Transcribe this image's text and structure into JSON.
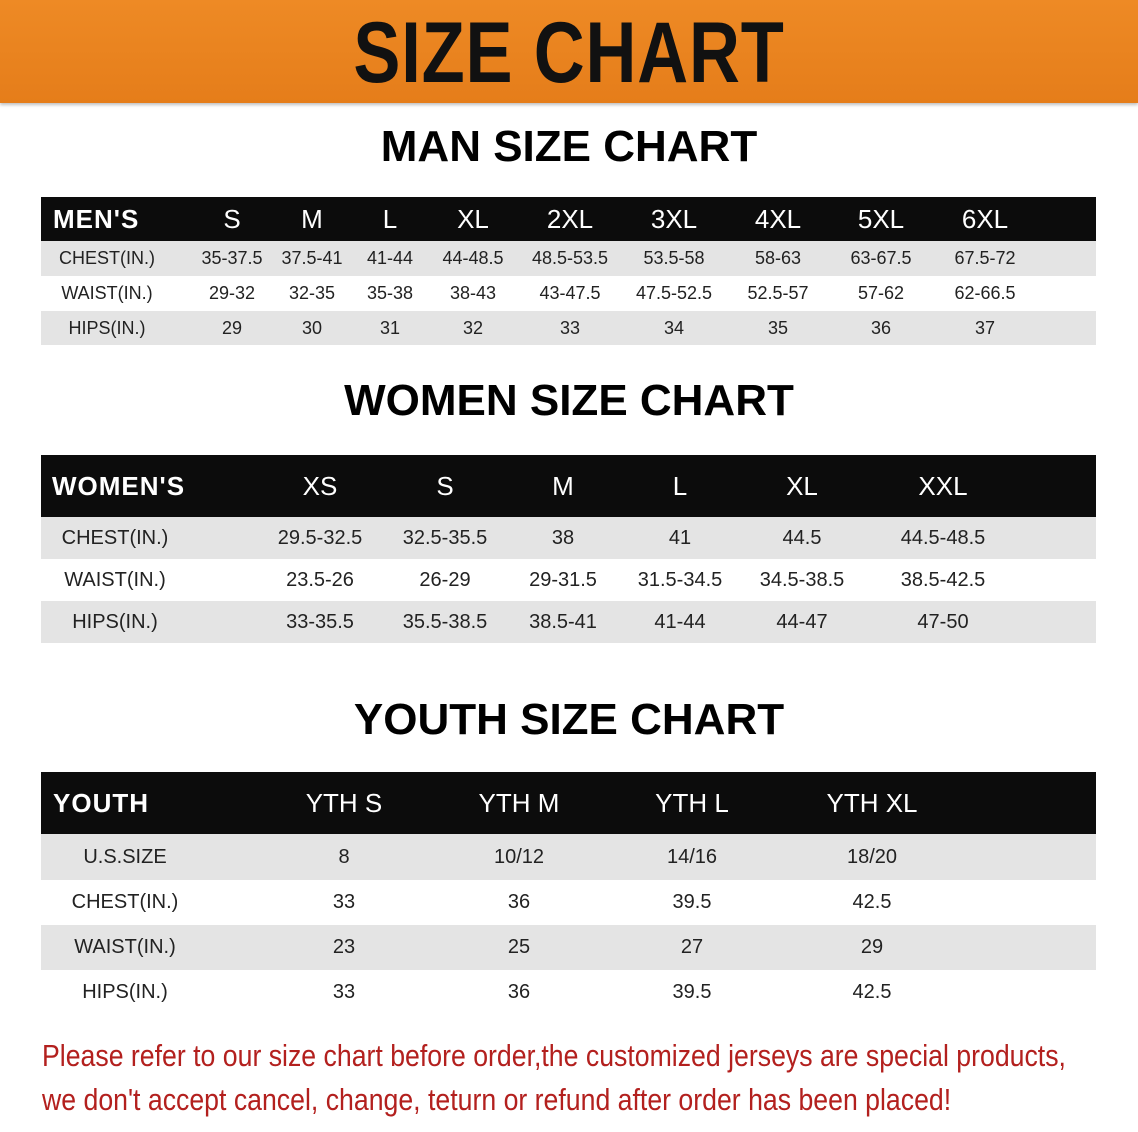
{
  "banner": {
    "title": "SIZE CHART",
    "color": "#e98420"
  },
  "men": {
    "title": "MAN SIZE CHART",
    "header": [
      "MEN'S",
      "S",
      "M",
      "L",
      "XL",
      "2XL",
      "3XL",
      "4XL",
      "5XL",
      "6XL"
    ],
    "rows": [
      [
        "CHEST(IN.)",
        "35-37.5",
        "37.5-41",
        "41-44",
        "44-48.5",
        "48.5-53.5",
        "53.5-58",
        "58-63",
        "63-67.5",
        "67.5-72"
      ],
      [
        "WAIST(IN.)",
        "29-32",
        "32-35",
        "35-38",
        "38-43",
        "43-47.5",
        "47.5-52.5",
        "52.5-57",
        "57-62",
        "62-66.5"
      ],
      [
        "HIPS(IN.)",
        "29",
        "30",
        "31",
        "32",
        "33",
        "34",
        "35",
        "36",
        "37"
      ]
    ]
  },
  "women": {
    "title": "WOMEN SIZE CHART",
    "header": [
      "WOMEN'S",
      "XS",
      "S",
      "M",
      "L",
      "XL",
      "XXL"
    ],
    "rows": [
      [
        "CHEST(IN.)",
        "29.5-32.5",
        "32.5-35.5",
        "38",
        "41",
        "44.5",
        "44.5-48.5"
      ],
      [
        "WAIST(IN.)",
        "23.5-26",
        "26-29",
        "29-31.5",
        "31.5-34.5",
        "34.5-38.5",
        "38.5-42.5"
      ],
      [
        "HIPS(IN.)",
        "33-35.5",
        "35.5-38.5",
        "38.5-41",
        "41-44",
        "44-47",
        "47-50"
      ]
    ]
  },
  "youth": {
    "title": "YOUTH SIZE CHART",
    "header": [
      "YOUTH",
      "YTH S",
      "YTH M",
      "YTH L",
      "YTH XL"
    ],
    "rows": [
      [
        "U.S.SIZE",
        "8",
        "10/12",
        "14/16",
        "18/20"
      ],
      [
        "CHEST(IN.)",
        "33",
        "36",
        "39.5",
        "42.5"
      ],
      [
        "WAIST(IN.)",
        "23",
        "25",
        "27",
        "29"
      ],
      [
        "HIPS(IN.)",
        "33",
        "36",
        "39.5",
        "42.5"
      ]
    ]
  },
  "notice": {
    "line1": "Please refer to our size chart before order,the customized jerseys are special products,",
    "line2": "we don't accept cancel, change, teturn or refund after order has been placed!",
    "color": "#b3201e"
  }
}
